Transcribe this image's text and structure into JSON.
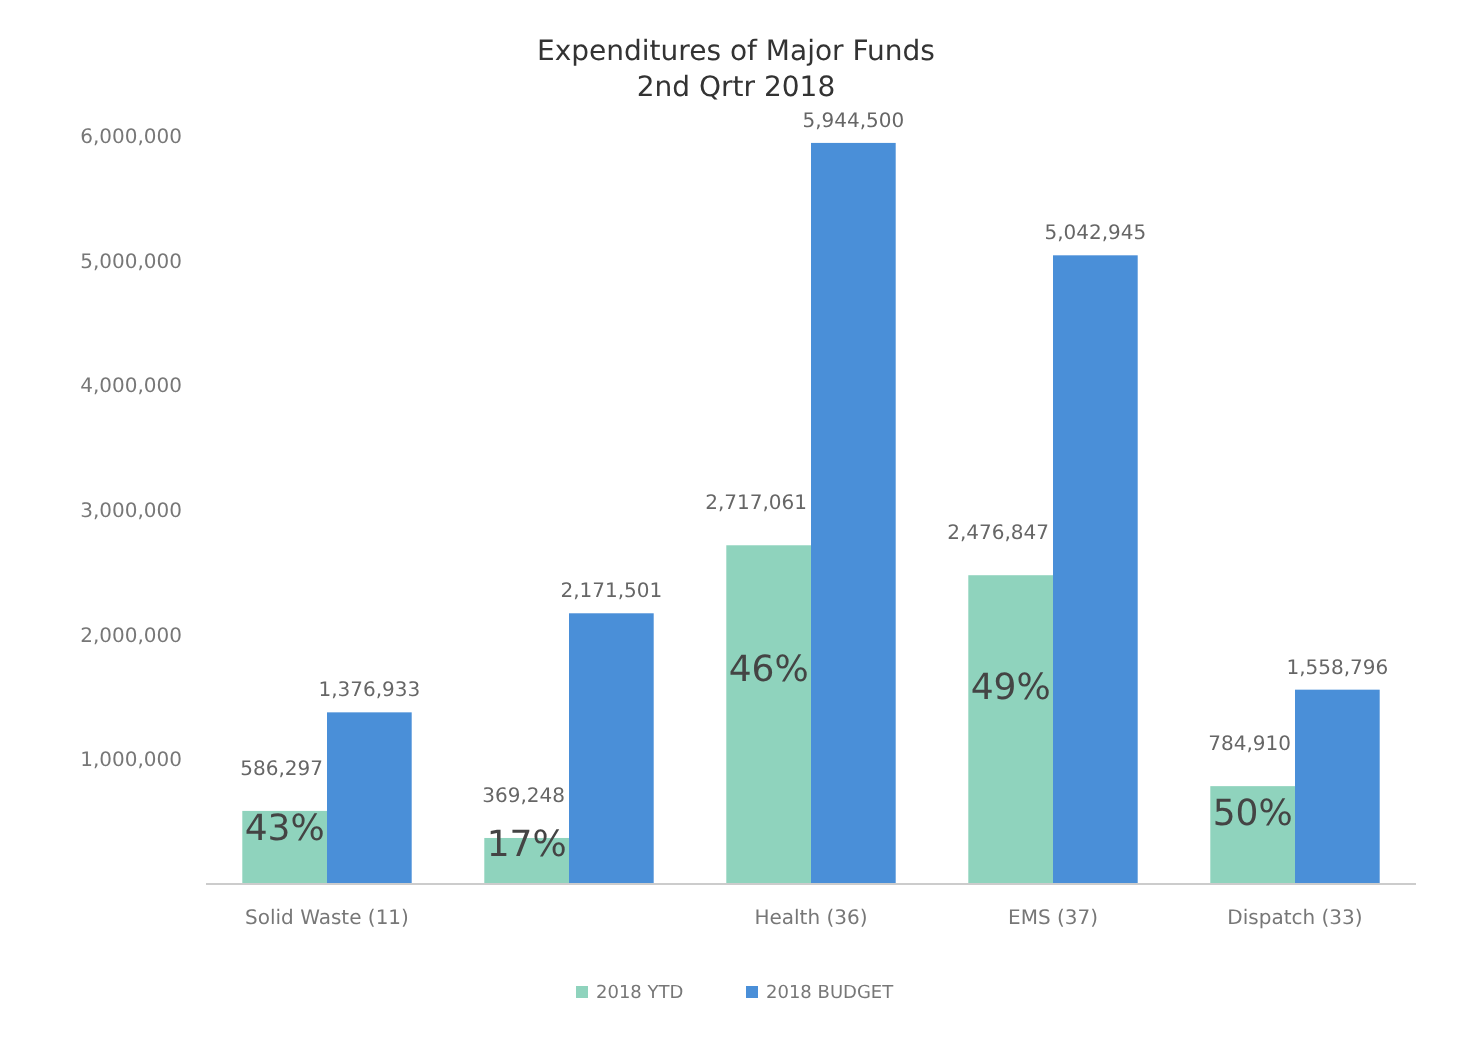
{
  "chart_data": {
    "type": "bar",
    "title": "Expenditures of Major Funds",
    "subtitle": "2nd Qrtr 2018",
    "categories": [
      "Solid Waste (11)",
      null,
      "Health (36)",
      "EMS (37)",
      "Dispatch (33)"
    ],
    "series": [
      {
        "name": "2018 YTD",
        "color": "#8fd3bd",
        "values": [
          586297,
          369248,
          2717061,
          2476847,
          784910
        ],
        "value_labels": [
          "586,297",
          "369,248",
          "2,717,061",
          "2,476,847",
          "784,910"
        ]
      },
      {
        "name": "2018 BUDGET",
        "color": "#4a8fd8",
        "values": [
          1376933,
          2171501,
          5944500,
          5042945,
          1558796
        ],
        "value_labels": [
          "1,376,933",
          "2,171,501",
          "5,944,500",
          "5,042,945",
          "1,558,796"
        ]
      }
    ],
    "ylim": [
      0,
      6000000
    ],
    "yticks": [
      {
        "value": 1000000,
        "label": "1,000,000"
      },
      {
        "value": 2000000,
        "label": "2,000,000"
      },
      {
        "value": 3000000,
        "label": "3,000,000"
      },
      {
        "value": 4000000,
        "label": "4,000,000"
      },
      {
        "value": 5000000,
        "label": "5,000,000"
      },
      {
        "value": 6000000,
        "label": "6,000,000"
      }
    ],
    "grid": false,
    "legend": "bottom",
    "annotations": [
      "43%",
      "17%",
      "46%",
      "49%",
      "50%"
    ]
  }
}
